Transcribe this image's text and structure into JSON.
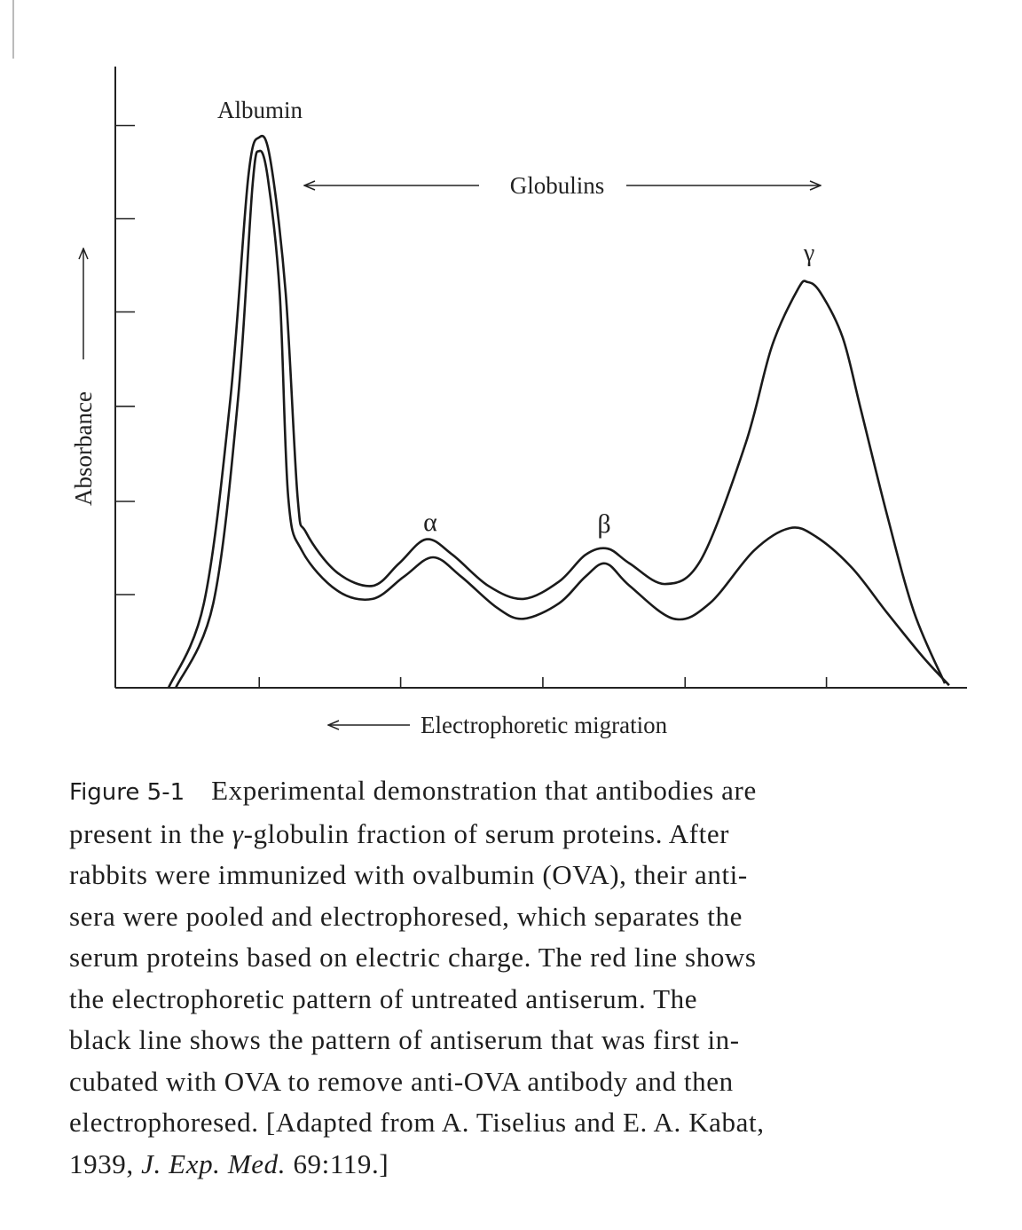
{
  "chart_data": {
    "type": "line",
    "title": "",
    "xlabel": "Electrophoretic migration",
    "xlabel_arrow": "left",
    "ylabel": "Absorbance",
    "ylabel_arrow": "up",
    "xlim": [
      0,
      100
    ],
    "ylim": [
      0,
      100
    ],
    "x_ticks": [
      16.9,
      33.5,
      50.2,
      66.9,
      83.5
    ],
    "y_ticks": [
      15,
      30,
      45.3,
      60.5,
      75.5,
      90.5
    ],
    "grid": false,
    "annotations": {
      "albumin": "Albumin",
      "globulins": "Globulins",
      "alpha": "α",
      "beta": "β",
      "gamma": "γ"
    },
    "series": [
      {
        "name": "Untreated antiserum (red line)",
        "color": "#1a1a1a",
        "points": [
          [
            6.25,
            0
          ],
          [
            10.4,
            13.6
          ],
          [
            13.5,
            46.4
          ],
          [
            15.6,
            82.1
          ],
          [
            16.9,
            88.6
          ],
          [
            18.2,
            85
          ],
          [
            20,
            63.6
          ],
          [
            21.4,
            30.7
          ],
          [
            22.4,
            25
          ],
          [
            26,
            18.6
          ],
          [
            30.2,
            16.4
          ],
          [
            33.3,
            20
          ],
          [
            36.5,
            23.9
          ],
          [
            39.6,
            21.4
          ],
          [
            43.8,
            16.4
          ],
          [
            47.9,
            14.3
          ],
          [
            52.1,
            17.1
          ],
          [
            55.2,
            21.4
          ],
          [
            57.8,
            22.4
          ],
          [
            60.4,
            20
          ],
          [
            64.6,
            16.7
          ],
          [
            68.8,
            20.7
          ],
          [
            74,
            39.3
          ],
          [
            77.1,
            55
          ],
          [
            80.2,
            64.3
          ],
          [
            81.3,
            65.3
          ],
          [
            82.8,
            63.6
          ],
          [
            85.4,
            56.4
          ],
          [
            87.5,
            45
          ],
          [
            90.6,
            27.9
          ],
          [
            93.8,
            12.1
          ],
          [
            97.4,
            0.7
          ]
        ]
      },
      {
        "name": "Antiserum incubated with OVA (black line)",
        "color": "#1a1a1a",
        "points": [
          [
            7.1,
            0
          ],
          [
            11.5,
            13.6
          ],
          [
            14.4,
            46.4
          ],
          [
            16.1,
            80.7
          ],
          [
            16.9,
            86.4
          ],
          [
            17.9,
            82.1
          ],
          [
            19.3,
            63.6
          ],
          [
            20.3,
            30.7
          ],
          [
            21.9,
            22.1
          ],
          [
            26,
            15.7
          ],
          [
            30.2,
            14.3
          ],
          [
            33.9,
            17.9
          ],
          [
            37.3,
            21
          ],
          [
            40.6,
            17.9
          ],
          [
            44.8,
            12.9
          ],
          [
            47.9,
            11.1
          ],
          [
            52.1,
            13.6
          ],
          [
            55.2,
            17.9
          ],
          [
            57.6,
            20
          ],
          [
            60.4,
            16.4
          ],
          [
            65.6,
            11.1
          ],
          [
            69.8,
            13.6
          ],
          [
            75,
            22.1
          ],
          [
            79.2,
            25.7
          ],
          [
            82.3,
            24.3
          ],
          [
            86.5,
            19.3
          ],
          [
            90.6,
            12.1
          ],
          [
            94.8,
            5
          ],
          [
            97.9,
            0.4
          ]
        ]
      }
    ]
  },
  "caption": {
    "figure_label": "Figure 5-1",
    "lines": [
      [
        {
          "text": "Experimental demonstration that antibodies are",
          "italic": false
        }
      ],
      [
        {
          "text": "present in the ",
          "italic": false
        },
        {
          "text": "γ",
          "italic": true
        },
        {
          "text": "-globulin fraction of serum proteins. After",
          "italic": false
        }
      ],
      [
        {
          "text": "rabbits were immunized with ovalbumin (OVA), their anti-",
          "italic": false
        }
      ],
      [
        {
          "text": "sera were pooled and electrophoresed, which separates the",
          "italic": false
        }
      ],
      [
        {
          "text": "serum proteins based on electric charge. The red line shows",
          "italic": false
        }
      ],
      [
        {
          "text": "the electrophoretic pattern of untreated antiserum. The",
          "italic": false
        }
      ],
      [
        {
          "text": "black line shows the pattern of antiserum that was first in-",
          "italic": false
        }
      ],
      [
        {
          "text": "cubated with OVA to remove anti-OVA antibody and then",
          "italic": false
        }
      ],
      [
        {
          "text": "electrophoresed. [Adapted from A. Tiselius and E. A. Kabat,",
          "italic": false
        }
      ],
      [
        {
          "text": "1939, ",
          "italic": false
        },
        {
          "text": "J. Exp. Med.",
          "italic": true
        },
        {
          "text": " 69:119.]",
          "italic": false
        }
      ]
    ]
  }
}
